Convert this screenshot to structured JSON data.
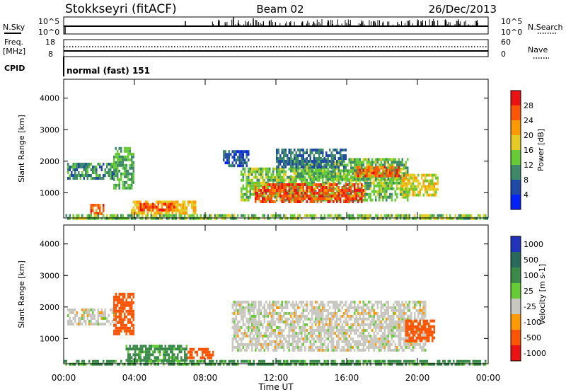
{
  "header": {
    "station": "Stokkseyri (fitACF)",
    "beam": "Beam 02",
    "date": "26/Dec/2013"
  },
  "nsky_panel": {
    "left_label": "N.Sky",
    "left_ticks": [
      "10^5",
      "10^0"
    ],
    "right_ticks": [
      "10^5",
      "10^0"
    ],
    "right_label": "N.Search"
  },
  "freq_panel": {
    "left_label_line1": "Freq.",
    "left_label_line2": "[MHz]",
    "left_ticks": [
      "18",
      "8"
    ],
    "right_ticks": [
      "60",
      "0"
    ],
    "right_label": "Nave",
    "cpid_label": "CPID",
    "mode_text": "normal (fast) 151"
  },
  "chart_data": [
    {
      "type": "heatmap",
      "name": "power",
      "xlabel": "Time UT",
      "ylabel": "Slant Range [km]",
      "x_ticks": [
        "00:00",
        "04:00",
        "08:00",
        "12:00",
        "16:00",
        "20:00",
        "00:00"
      ],
      "y_ticks": [
        1000,
        2000,
        3000,
        4000
      ],
      "ylim": [
        200,
        4600
      ],
      "xlim_hours": [
        0,
        24
      ],
      "colorbar": {
        "label": "Power [dB]",
        "ticks": [
          4,
          8,
          12,
          16,
          20,
          24,
          28
        ],
        "colors": [
          "#0022ff",
          "#1f4aa8",
          "#3d8a6a",
          "#66cc33",
          "#e6cc22",
          "#ff9900",
          "#ff5500",
          "#ee1111"
        ]
      },
      "regions": [
        {
          "t0": 0.2,
          "t1": 3.0,
          "r0": 1450,
          "r1": 1950,
          "dB": 10
        },
        {
          "t0": 2.8,
          "t1": 4.0,
          "r0": 1150,
          "r1": 2450,
          "dB": 12
        },
        {
          "t0": 1.5,
          "t1": 2.3,
          "r0": 350,
          "r1": 650,
          "dB": 26
        },
        {
          "t0": 3.8,
          "t1": 7.5,
          "r0": 350,
          "r1": 750,
          "dB": 20
        },
        {
          "t0": 4.3,
          "t1": 6.3,
          "r0": 420,
          "r1": 680,
          "dB": 27
        },
        {
          "t0": 10.0,
          "t1": 19.5,
          "r0": 800,
          "r1": 1800,
          "dB": 14
        },
        {
          "t0": 10.8,
          "t1": 17.0,
          "r0": 750,
          "r1": 1300,
          "dB": 27
        },
        {
          "t0": 12.8,
          "t1": 19.5,
          "r0": 1400,
          "r1": 2100,
          "dB": 13
        },
        {
          "t0": 16.5,
          "t1": 19.0,
          "r0": 1500,
          "r1": 1850,
          "dB": 25
        },
        {
          "t0": 19.0,
          "t1": 21.2,
          "r0": 900,
          "r1": 1600,
          "dB": 18
        },
        {
          "t0": 12.0,
          "t1": 16.0,
          "r0": 1800,
          "r1": 2400,
          "dB": 8
        },
        {
          "t0": 9.0,
          "t1": 10.5,
          "r0": 1900,
          "r1": 2350,
          "dB": 6
        },
        {
          "t0": 0.0,
          "t1": 24.0,
          "r0": 200,
          "r1": 320,
          "dB": 14
        }
      ]
    },
    {
      "type": "heatmap",
      "name": "velocity",
      "xlabel": "Time UT",
      "ylabel": "Slant Range [km]",
      "x_ticks": [
        "00:00",
        "04:00",
        "08:00",
        "12:00",
        "16:00",
        "20:00",
        "00:00"
      ],
      "y_ticks": [
        1000,
        2000,
        3000,
        4000
      ],
      "ylim": [
        200,
        4600
      ],
      "xlim_hours": [
        0,
        24
      ],
      "colorbar": {
        "label": "Velocity [m s-1]",
        "ticks": [
          "1000",
          "500",
          "100",
          "25",
          "-25",
          "-100",
          "-500",
          "-1000"
        ],
        "colors": [
          "#2233bb",
          "#2a6a5a",
          "#3a8a4a",
          "#66cc33",
          "#c8c8c0",
          "#ff9900",
          "#ff5500",
          "#ee1111"
        ]
      },
      "regions": [
        {
          "t0": 0.2,
          "t1": 3.0,
          "r0": 1450,
          "r1": 1950,
          "v": 0
        },
        {
          "t0": 2.8,
          "t1": 4.0,
          "r0": 1150,
          "r1": 2450,
          "v": -150
        },
        {
          "t0": 3.5,
          "t1": 7.0,
          "r0": 350,
          "r1": 800,
          "v": 80
        },
        {
          "t0": 7.0,
          "t1": 8.5,
          "r0": 400,
          "r1": 700,
          "v": -120
        },
        {
          "t0": 9.5,
          "t1": 20.5,
          "r0": 650,
          "r1": 2200,
          "v": 0
        },
        {
          "t0": 19.3,
          "t1": 21.0,
          "r0": 900,
          "r1": 1600,
          "v": -150
        },
        {
          "t0": 0.0,
          "t1": 24.0,
          "r0": 200,
          "r1": 320,
          "v": 80
        }
      ]
    }
  ]
}
